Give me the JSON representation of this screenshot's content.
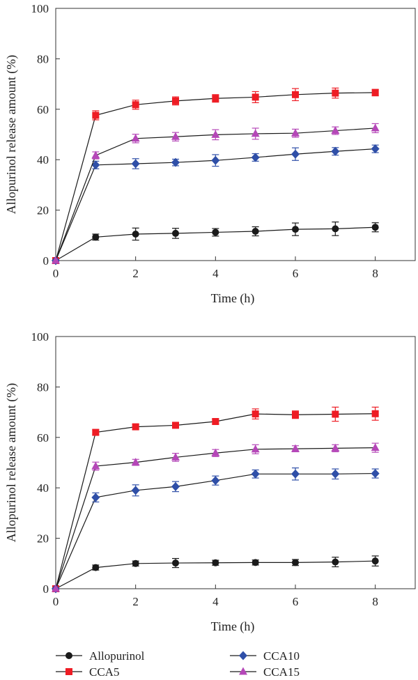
{
  "charts": [
    {
      "type": "line",
      "xlabel": "Time (h)",
      "ylabel": "Allopurinol release amount (%)",
      "xlim": [
        0,
        9
      ],
      "ylim": [
        0,
        100
      ],
      "xticks": [
        0,
        2,
        4,
        6,
        8
      ],
      "yticks": [
        0,
        20,
        40,
        60,
        80,
        100
      ],
      "x": [
        0,
        1,
        2,
        3,
        4,
        5,
        6,
        7,
        8
      ],
      "series": [
        {
          "name": "Allopurinol",
          "values": [
            0,
            9.3,
            10.5,
            10.8,
            11.2,
            11.6,
            12.4,
            12.6,
            13.2
          ],
          "errors": [
            0,
            1.2,
            2.4,
            2.0,
            1.5,
            1.8,
            2.5,
            2.7,
            1.8
          ]
        },
        {
          "name": "CCA5",
          "values": [
            0,
            57.6,
            61.8,
            63.3,
            64.3,
            64.8,
            65.8,
            66.4,
            66.6
          ],
          "errors": [
            0,
            1.8,
            1.8,
            1.6,
            1.5,
            2.2,
            2.4,
            2.0,
            1.3
          ]
        },
        {
          "name": "CCA10",
          "values": [
            0,
            37.9,
            38.4,
            38.9,
            39.7,
            40.9,
            42.2,
            43.3,
            44.3
          ],
          "errors": [
            0,
            1.5,
            2.0,
            1.3,
            2.3,
            1.5,
            2.5,
            1.5,
            1.5
          ]
        },
        {
          "name": "CCA15",
          "values": [
            0,
            41.7,
            48.4,
            49.1,
            49.9,
            50.3,
            50.5,
            51.5,
            52.5
          ],
          "errors": [
            0,
            1.4,
            1.7,
            1.7,
            2.0,
            2.2,
            1.6,
            1.5,
            1.8
          ]
        }
      ]
    },
    {
      "type": "line",
      "xlabel": "Time (h)",
      "ylabel": "Allopurinol release amount (%)",
      "xlim": [
        0,
        9
      ],
      "ylim": [
        0,
        100
      ],
      "xticks": [
        0,
        2,
        4,
        6,
        8
      ],
      "yticks": [
        0,
        20,
        40,
        60,
        80,
        100
      ],
      "x": [
        0,
        1,
        2,
        3,
        4,
        5,
        6,
        7,
        8
      ],
      "series": [
        {
          "name": "Allopurinol",
          "values": [
            0,
            8.4,
            10.0,
            10.2,
            10.3,
            10.4,
            10.4,
            10.6,
            11.0
          ],
          "errors": [
            0,
            1.0,
            1.0,
            1.8,
            1.0,
            1.0,
            1.2,
            1.9,
            2.0
          ]
        },
        {
          "name": "CCA5",
          "values": [
            0,
            62.0,
            64.2,
            64.8,
            66.3,
            69.3,
            69.0,
            69.2,
            69.4
          ],
          "errors": [
            0,
            1.0,
            1.0,
            1.0,
            1.0,
            2.0,
            1.5,
            2.8,
            2.6
          ]
        },
        {
          "name": "CCA10",
          "values": [
            0,
            36.2,
            39.0,
            40.5,
            42.9,
            45.5,
            45.5,
            45.5,
            45.7
          ],
          "errors": [
            0,
            1.8,
            2.2,
            2.0,
            1.8,
            1.6,
            2.4,
            2.0,
            1.8
          ]
        },
        {
          "name": "CCA15",
          "values": [
            0,
            48.6,
            50.1,
            52.1,
            53.8,
            55.3,
            55.5,
            55.7,
            55.9
          ],
          "errors": [
            0,
            1.6,
            1.2,
            1.6,
            1.4,
            1.8,
            1.2,
            1.4,
            1.8
          ]
        }
      ]
    }
  ],
  "legend": {
    "placement": "bottom",
    "items": [
      {
        "name": "Allopurinol",
        "marker": "circle",
        "color": "#1a1a1a"
      },
      {
        "name": "CCA5",
        "marker": "square",
        "color": "#ee1c24"
      },
      {
        "name": "CCA10",
        "marker": "diamond",
        "color": "#2f4fa8"
      },
      {
        "name": "CCA15",
        "marker": "triangle",
        "color": "#b547b8"
      }
    ]
  },
  "style": {
    "series_colors": {
      "Allopurinol": "#1a1a1a",
      "CCA5": "#ee1c24",
      "CCA10": "#2f4fa8",
      "CCA15": "#b547b8"
    },
    "line_color": "#1a1a1a",
    "grid": false
  }
}
